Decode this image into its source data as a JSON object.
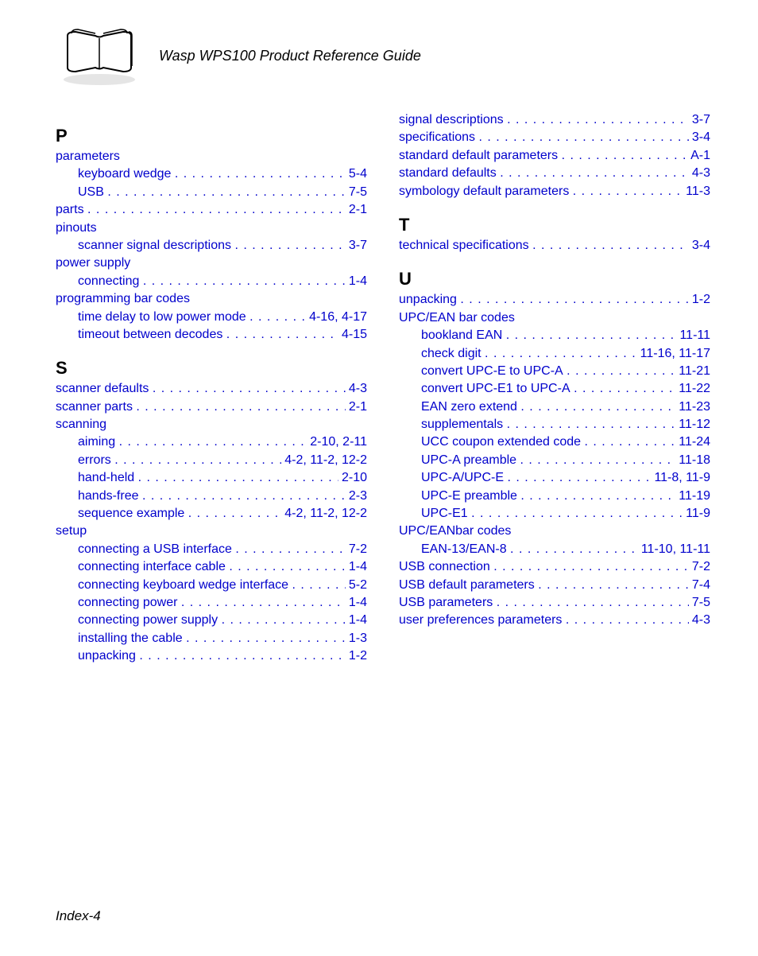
{
  "header": {
    "title": "Wasp WPS100 Product Reference Guide"
  },
  "footer": {
    "text": "Index-4"
  },
  "link_color": "#0000cc",
  "left_column": [
    {
      "type": "letter",
      "text": "P"
    },
    {
      "type": "entry",
      "label": "parameters",
      "indent": 0,
      "header_only": true
    },
    {
      "type": "entry",
      "label": "keyboard wedge",
      "page": "5-4",
      "indent": 1
    },
    {
      "type": "entry",
      "label": "USB",
      "page": "7-5",
      "indent": 1
    },
    {
      "type": "entry",
      "label": "parts",
      "page": "2-1",
      "indent": 0
    },
    {
      "type": "entry",
      "label": "pinouts",
      "indent": 0,
      "header_only": true
    },
    {
      "type": "entry",
      "label": "scanner signal descriptions",
      "page": "3-7",
      "indent": 1
    },
    {
      "type": "entry",
      "label": "power supply",
      "indent": 0,
      "header_only": true
    },
    {
      "type": "entry",
      "label": "connecting",
      "page": "1-4",
      "indent": 1
    },
    {
      "type": "entry",
      "label": "programming bar codes",
      "indent": 0,
      "header_only": true
    },
    {
      "type": "entry",
      "label": "time delay to low power mode",
      "page": "4-16, 4-17",
      "indent": 1
    },
    {
      "type": "entry",
      "label": "timeout between decodes",
      "page": "4-15",
      "indent": 1
    },
    {
      "type": "letter",
      "text": "S"
    },
    {
      "type": "entry",
      "label": "scanner defaults",
      "page": "4-3",
      "indent": 0
    },
    {
      "type": "entry",
      "label": "scanner parts",
      "page": "2-1",
      "indent": 0
    },
    {
      "type": "entry",
      "label": "scanning",
      "indent": 0,
      "header_only": true
    },
    {
      "type": "entry",
      "label": "aiming",
      "page": "2-10, 2-11",
      "indent": 1
    },
    {
      "type": "entry",
      "label": "errors",
      "page": "4-2, 11-2, 12-2",
      "indent": 1
    },
    {
      "type": "entry",
      "label": "hand-held",
      "page": "2-10",
      "indent": 1
    },
    {
      "type": "entry",
      "label": "hands-free",
      "page": "2-3",
      "indent": 1
    },
    {
      "type": "entry",
      "label": "sequence example",
      "page": "4-2, 11-2, 12-2",
      "indent": 1
    },
    {
      "type": "entry",
      "label": "setup",
      "indent": 0,
      "header_only": true
    },
    {
      "type": "entry",
      "label": "connecting a USB interface",
      "page": "7-2",
      "indent": 1
    },
    {
      "type": "entry",
      "label": "connecting interface cable",
      "page": "1-4",
      "indent": 1
    },
    {
      "type": "entry",
      "label": "connecting keyboard wedge interface",
      "page": "5-2",
      "indent": 1
    },
    {
      "type": "entry",
      "label": "connecting power",
      "page": "1-4",
      "indent": 1
    },
    {
      "type": "entry",
      "label": "connecting power supply",
      "page": "1-4",
      "indent": 1
    },
    {
      "type": "entry",
      "label": "installing the cable",
      "page": "1-3",
      "indent": 1
    },
    {
      "type": "entry",
      "label": "unpacking",
      "page": "1-2",
      "indent": 1
    }
  ],
  "right_column": [
    {
      "type": "entry",
      "label": "signal descriptions",
      "page": "3-7",
      "indent": 0
    },
    {
      "type": "entry",
      "label": "specifications",
      "page": "3-4",
      "indent": 0
    },
    {
      "type": "entry",
      "label": "standard default parameters",
      "page": "A-1",
      "indent": 0
    },
    {
      "type": "entry",
      "label": "standard defaults",
      "page": "4-3",
      "indent": 0
    },
    {
      "type": "entry",
      "label": "symbology default parameters",
      "page": "11-3",
      "indent": 0
    },
    {
      "type": "letter",
      "text": "T"
    },
    {
      "type": "entry",
      "label": "technical specifications",
      "page": "3-4",
      "indent": 0
    },
    {
      "type": "letter",
      "text": "U"
    },
    {
      "type": "entry",
      "label": "unpacking",
      "page": "1-2",
      "indent": 0
    },
    {
      "type": "entry",
      "label": "UPC/EAN bar codes",
      "indent": 0,
      "header_only": true
    },
    {
      "type": "entry",
      "label": "bookland EAN",
      "page": "11-11",
      "indent": 1
    },
    {
      "type": "entry",
      "label": "check digit",
      "page": "11-16, 11-17",
      "indent": 1
    },
    {
      "type": "entry",
      "label": "convert UPC-E to UPC-A",
      "page": "11-21",
      "indent": 1
    },
    {
      "type": "entry",
      "label": "convert UPC-E1 to UPC-A",
      "page": "11-22",
      "indent": 1
    },
    {
      "type": "entry",
      "label": "EAN zero extend",
      "page": "11-23",
      "indent": 1
    },
    {
      "type": "entry",
      "label": "supplementals",
      "page": "11-12",
      "indent": 1
    },
    {
      "type": "entry",
      "label": "UCC coupon extended code",
      "page": "11-24",
      "indent": 1
    },
    {
      "type": "entry",
      "label": "UPC-A preamble",
      "page": "11-18",
      "indent": 1
    },
    {
      "type": "entry",
      "label": "UPC-A/UPC-E",
      "page": "11-8, 11-9",
      "indent": 1
    },
    {
      "type": "entry",
      "label": "UPC-E preamble",
      "page": "11-19",
      "indent": 1
    },
    {
      "type": "entry",
      "label": "UPC-E1",
      "page": "11-9",
      "indent": 1
    },
    {
      "type": "entry",
      "label": "UPC/EANbar codes",
      "indent": 0,
      "header_only": true
    },
    {
      "type": "entry",
      "label": "EAN-13/EAN-8",
      "page": "11-10, 11-11",
      "indent": 1
    },
    {
      "type": "entry",
      "label": "USB connection",
      "page": "7-2",
      "indent": 0
    },
    {
      "type": "entry",
      "label": "USB default parameters",
      "page": "7-4",
      "indent": 0
    },
    {
      "type": "entry",
      "label": "USB parameters",
      "page": "7-5",
      "indent": 0
    },
    {
      "type": "entry",
      "label": "user preferences parameters",
      "page": "4-3",
      "indent": 0
    }
  ]
}
